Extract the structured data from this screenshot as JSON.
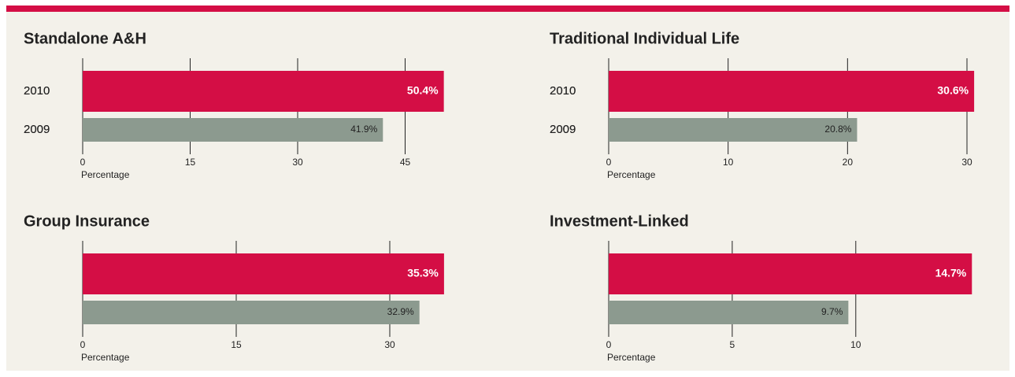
{
  "chart_data": [
    {
      "type": "bar",
      "orientation": "horizontal",
      "title": "Standalone A&H",
      "categories": [
        "2010",
        "2009"
      ],
      "values": [
        50.4,
        41.9
      ],
      "value_labels": [
        "50.4%",
        "41.9%"
      ],
      "colors": [
        "#d40e45",
        "#8c9a8f"
      ],
      "xlabel": "Percentage",
      "xlim": [
        0,
        50
      ],
      "xticks": [
        0,
        15,
        30,
        45
      ]
    },
    {
      "type": "bar",
      "orientation": "horizontal",
      "title": "Traditional Individual Life",
      "categories": [
        "2010",
        "2009"
      ],
      "values": [
        30.6,
        20.8
      ],
      "value_labels": [
        "30.6%",
        "20.8%"
      ],
      "colors": [
        "#d40e45",
        "#8c9a8f"
      ],
      "xlabel": "Percentage",
      "xlim": [
        0,
        30
      ],
      "xticks": [
        0,
        10,
        20,
        30
      ]
    },
    {
      "type": "bar",
      "orientation": "horizontal",
      "title": "Group Insurance",
      "categories": [
        "2010",
        "2009"
      ],
      "values": [
        35.3,
        32.9
      ],
      "value_labels": [
        "35.3%",
        "32.9%"
      ],
      "colors": [
        "#d40e45",
        "#8c9a8f"
      ],
      "xlabel": "Percentage",
      "xlim": [
        0,
        35
      ],
      "xticks": [
        0,
        15,
        30
      ]
    },
    {
      "type": "bar",
      "orientation": "horizontal",
      "title": "Investment-Linked",
      "categories": [
        "2010",
        "2009"
      ],
      "values": [
        14.7,
        9.7
      ],
      "value_labels": [
        "14.7%",
        "9.7%"
      ],
      "colors": [
        "#d40e45",
        "#8c9a8f"
      ],
      "xlabel": "Percentage",
      "xlim": [
        0,
        14.5
      ],
      "xticks": [
        0,
        5,
        10
      ]
    }
  ]
}
